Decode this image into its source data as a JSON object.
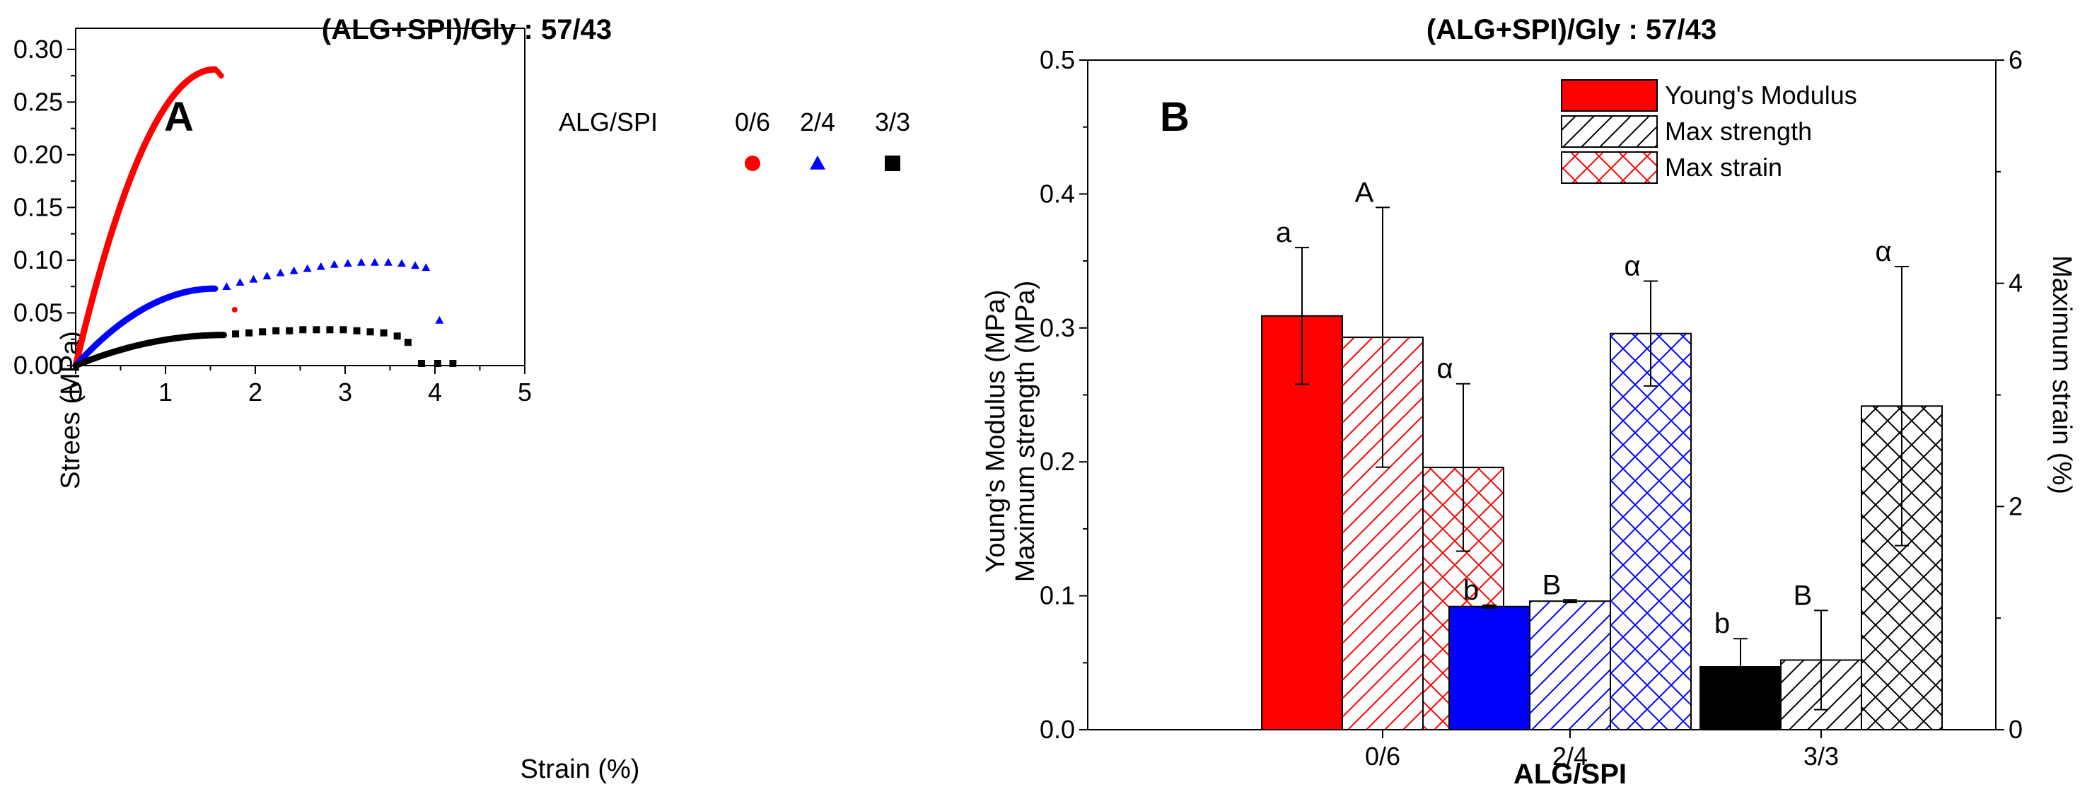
{
  "figure_title": "(ALG+SPI)/Gly : 57/43",
  "chart_data": [
    {
      "panel": "A",
      "type": "scatter",
      "title": "(ALG+SPI)/Gly : 57/43",
      "xlabel": "Strain (%)",
      "ylabel": "Strees (MPa)",
      "xlim": [
        0,
        5
      ],
      "ylim": [
        0,
        0.32
      ],
      "xticks": [
        "0",
        "1",
        "2",
        "3",
        "4",
        "5"
      ],
      "yticks": [
        "0.00",
        "0.05",
        "0.10",
        "0.15",
        "0.20",
        "0.25",
        "0.30"
      ],
      "legend_title": "ALG/SPI",
      "legend_position": "top-right",
      "series": [
        {
          "name": "0/6",
          "marker": "circle",
          "color": "#ff0000",
          "curve_end": 1.55,
          "curve_peak": 0.281,
          "tail": [
            [
              1.58,
              0.279
            ],
            [
              1.6,
              0.277
            ],
            [
              1.62,
              0.275
            ]
          ],
          "extra_points": [
            [
              1.77,
              0.053
            ]
          ]
        },
        {
          "name": "2/4",
          "marker": "triangle",
          "color": "#0000ff",
          "curve_end": 1.55,
          "curve_peak": 0.073,
          "points": [
            [
              1.68,
              0.075
            ],
            [
              1.83,
              0.079
            ],
            [
              1.98,
              0.082
            ],
            [
              2.13,
              0.085
            ],
            [
              2.28,
              0.088
            ],
            [
              2.43,
              0.09
            ],
            [
              2.58,
              0.092
            ],
            [
              2.73,
              0.094
            ],
            [
              2.88,
              0.096
            ],
            [
              3.03,
              0.097
            ],
            [
              3.18,
              0.098
            ],
            [
              3.33,
              0.098
            ],
            [
              3.48,
              0.098
            ],
            [
              3.63,
              0.097
            ],
            [
              3.78,
              0.095
            ],
            [
              3.9,
              0.093
            ],
            [
              4.05,
              0.043
            ]
          ]
        },
        {
          "name": "3/3",
          "marker": "square",
          "color": "#000000",
          "curve_end": 1.65,
          "curve_peak": 0.029,
          "points": [
            [
              1.78,
              0.03
            ],
            [
              1.93,
              0.031
            ],
            [
              2.08,
              0.032
            ],
            [
              2.23,
              0.033
            ],
            [
              2.38,
              0.033
            ],
            [
              2.53,
              0.034
            ],
            [
              2.68,
              0.034
            ],
            [
              2.83,
              0.034
            ],
            [
              2.98,
              0.034
            ],
            [
              3.13,
              0.033
            ],
            [
              3.28,
              0.032
            ],
            [
              3.43,
              0.031
            ],
            [
              3.58,
              0.028
            ],
            [
              3.7,
              0.022
            ],
            [
              3.85,
              0.002
            ],
            [
              4.03,
              0.002
            ],
            [
              4.2,
              0.002
            ]
          ]
        }
      ]
    },
    {
      "panel": "B",
      "type": "bar",
      "title": "(ALG+SPI)/Gly : 57/43",
      "xlabel": "ALG/SPI",
      "ylabel_left_1": "Young's Modulus (MPa)",
      "ylabel_left_2": "Maximum strength (MPa)",
      "ylabel_right": "Maximum strain (%)",
      "categories": [
        "0/6",
        "2/4",
        "3/3"
      ],
      "ylim_left": [
        0,
        0.5
      ],
      "ylim_right": [
        0,
        6
      ],
      "yticks_left": [
        "0.0",
        "0.1",
        "0.2",
        "0.3",
        "0.4",
        "0.5"
      ],
      "yticks_right": [
        "0",
        "2",
        "4",
        "6"
      ],
      "legend_position": "top-right",
      "series": [
        {
          "name": "Young's Modulus",
          "axis": "left",
          "style": "solid",
          "values": [
            0.309,
            0.092,
            0.047
          ],
          "errors": [
            0.051,
            0.001,
            0.021
          ],
          "colors": [
            "#ff0000",
            "#0000ff",
            "#000000"
          ],
          "letters": [
            "a",
            "b",
            "b"
          ]
        },
        {
          "name": "Max strength",
          "axis": "left",
          "style": "hatch",
          "values": [
            0.293,
            0.096,
            0.052
          ],
          "errors": [
            0.097,
            0.001,
            0.037
          ],
          "colors": [
            "#ff0000",
            "#0000ff",
            "#000000"
          ],
          "letters": [
            "A",
            "B",
            "B"
          ]
        },
        {
          "name": "Max strain",
          "axis": "right",
          "style": "crosshatch",
          "values": [
            2.35,
            3.55,
            2.9
          ],
          "errors": [
            0.75,
            0.47,
            1.25
          ],
          "colors": [
            "#ff0000",
            "#0000ff",
            "#000000"
          ],
          "letters": [
            "α",
            "α",
            "α"
          ]
        }
      ]
    }
  ]
}
